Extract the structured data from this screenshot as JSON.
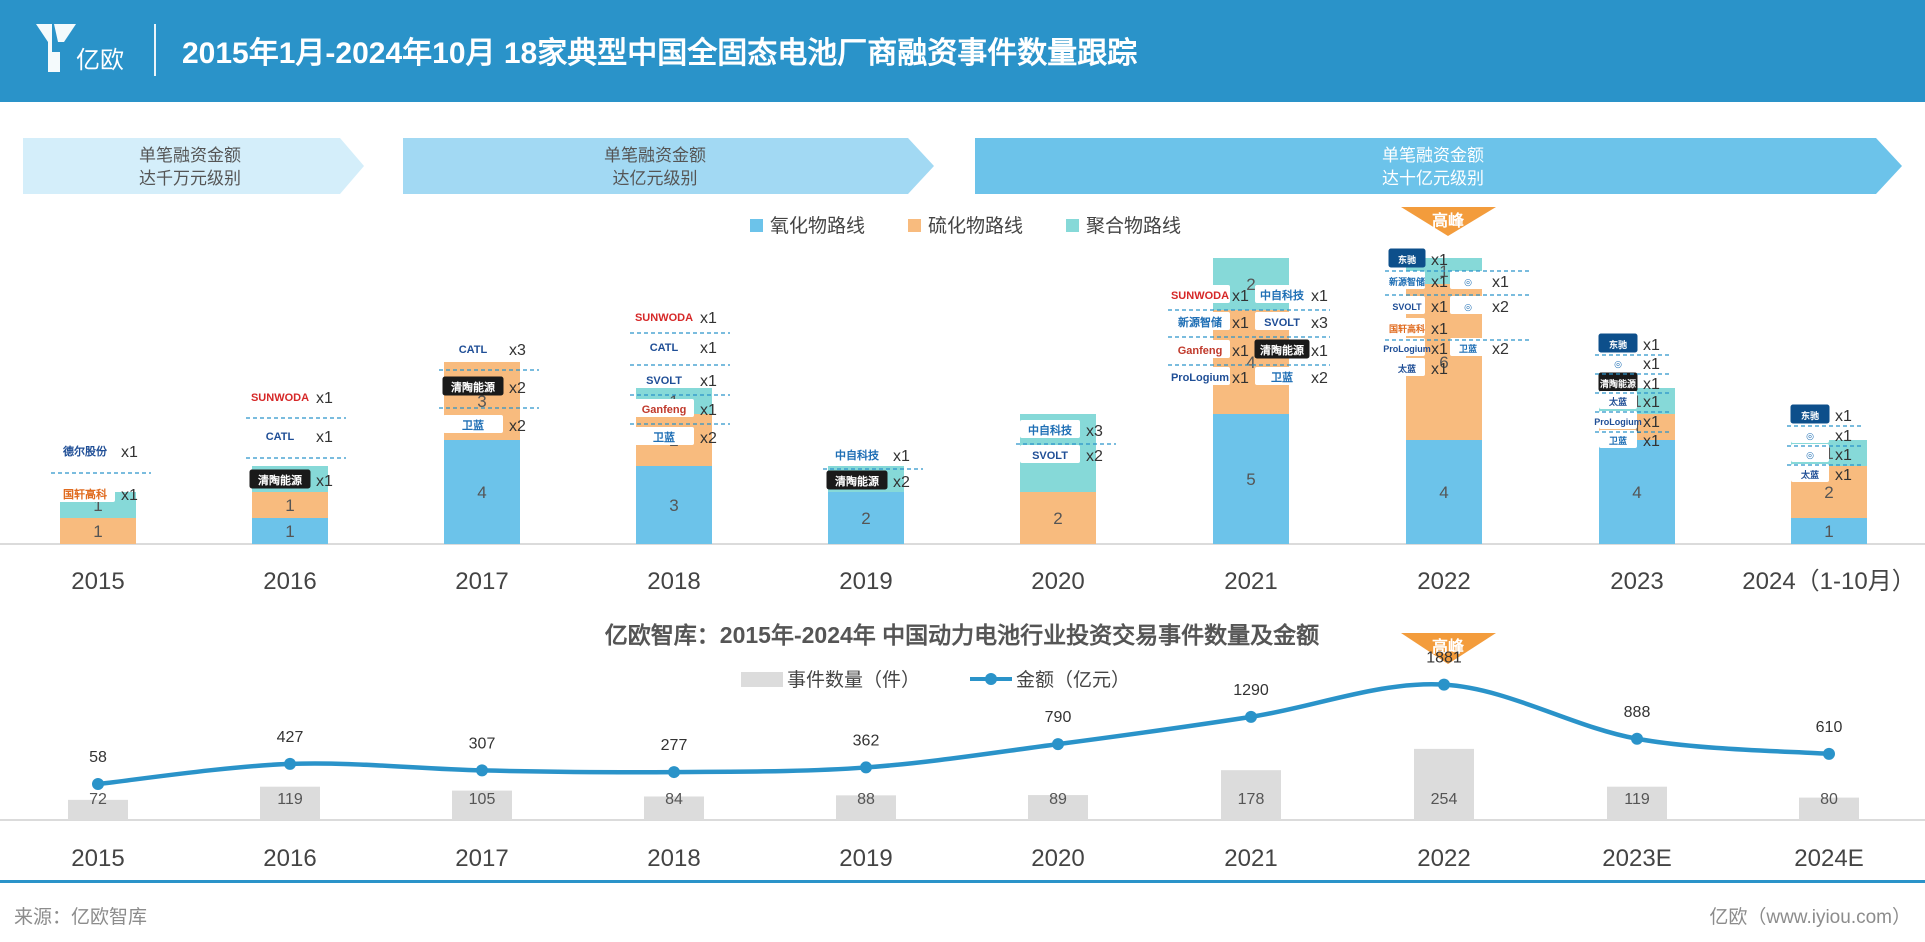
{
  "header": {
    "logo_text": "亿欧",
    "title": "2015年1月-2024年10月 18家典型中国全固态电池厂商融资事件数量跟踪"
  },
  "colors": {
    "header": "#2a93c9",
    "oxide": "#6cc3ea",
    "sulfide": "#f8bb7e",
    "polymer": "#86d9d8",
    "line": "#2a93c9",
    "bar_gray": "#dcdcdc",
    "peak": "#f39c3c"
  },
  "stage_banners": [
    {
      "line1": "单笔融资金额",
      "line2": "达千万元级别"
    },
    {
      "line1": "单笔融资金额",
      "line2": "达亿元级别"
    },
    {
      "line1": "单笔融资金额",
      "line2": "达十亿元级别"
    }
  ],
  "peak_label": "高峰",
  "chart_data": [
    {
      "type": "bar",
      "stacked": true,
      "title": "2015年1月-2024年10月 18家典型中国全固态电池厂商融资事件数量跟踪",
      "categories": [
        "2015",
        "2016",
        "2017",
        "2018",
        "2019",
        "2020",
        "2021",
        "2022",
        "2023",
        "2024（1-10月）"
      ],
      "series": [
        {
          "name": "氧化物路线",
          "color": "#6cc3ea",
          "values": [
            0,
            1,
            4,
            3,
            2,
            0,
            5,
            4,
            4,
            1
          ]
        },
        {
          "name": "硫化物路线",
          "color": "#f8bb7e",
          "values": [
            1,
            1,
            3,
            2,
            0,
            2,
            4,
            6,
            1,
            2
          ]
        },
        {
          "name": "聚合物路线",
          "color": "#86d9d8",
          "values": [
            1,
            1,
            0,
            1,
            1,
            3,
            2,
            1,
            1,
            1
          ]
        }
      ],
      "ylim": [
        0,
        13
      ],
      "annotations": [
        {
          "year": "2015",
          "companies": [
            {
              "name": "德尔股份",
              "count": "x1"
            },
            {
              "name": "国轩高科",
              "count": "x1"
            }
          ]
        },
        {
          "year": "2016",
          "companies": [
            {
              "name": "SUNWODA 欣旺达",
              "count": "x1"
            },
            {
              "name": "CATL 宁德时代",
              "count": "x1"
            },
            {
              "name": "清陶能源",
              "count": "x1"
            }
          ]
        },
        {
          "year": "2017",
          "companies": [
            {
              "name": "CATL 宁德时代",
              "count": "x3"
            },
            {
              "name": "清陶能源",
              "count": "x2"
            },
            {
              "name": "卫蓝新能源",
              "count": "x2"
            }
          ]
        },
        {
          "year": "2018",
          "companies": [
            {
              "name": "SUNWODA 欣旺达",
              "count": "x1"
            },
            {
              "name": "CATL 宁德时代",
              "count": "x1"
            },
            {
              "name": "SVOLT 蜂巢能源",
              "count": "x1"
            },
            {
              "name": "Ganfeng Lithium",
              "count": "x1"
            },
            {
              "name": "卫蓝新能源",
              "count": "x2"
            }
          ]
        },
        {
          "year": "2019",
          "companies": [
            {
              "name": "中自科技",
              "count": "x1"
            },
            {
              "name": "清陶能源",
              "count": "x2"
            }
          ]
        },
        {
          "year": "2020",
          "companies": [
            {
              "name": "中自科技",
              "count": "x3"
            },
            {
              "name": "SVOLT 蜂巢能源",
              "count": "x2"
            }
          ]
        },
        {
          "year": "2021",
          "companies": [
            {
              "name": "SUNWODA 欣旺达",
              "count": "x1"
            },
            {
              "name": "中自科技",
              "count": "x1"
            },
            {
              "name": "新源智储",
              "count": "x1"
            },
            {
              "name": "SVOLT 蜂巢能源",
              "count": "x3"
            },
            {
              "name": "Ganfeng Lithium",
              "count": "x1"
            },
            {
              "name": "清陶能源",
              "count": "x1"
            },
            {
              "name": "ProLogium",
              "count": "x1"
            },
            {
              "name": "卫蓝新能源",
              "count": "x2"
            }
          ]
        },
        {
          "year": "2022",
          "companies": [
            {
              "name": "东驰能源",
              "count": "x1"
            },
            {
              "name": "新源智储",
              "count": "x1"
            },
            {
              "name": "固态企业",
              "count": "x1"
            },
            {
              "name": "SVOLT 蜂巢能源",
              "count": "x1"
            },
            {
              "name": "固态企业",
              "count": "x2"
            },
            {
              "name": "国轩高科",
              "count": "x1"
            },
            {
              "name": "ProLogium",
              "count": "x1"
            },
            {
              "name": "卫蓝新能源",
              "count": "x2"
            },
            {
              "name": "太蓝新能源",
              "count": "x1"
            }
          ]
        },
        {
          "year": "2023",
          "companies": [
            {
              "name": "东驰能源",
              "count": "x1"
            },
            {
              "name": "固态企业",
              "count": "x1"
            },
            {
              "name": "清陶能源",
              "count": "x1"
            },
            {
              "name": "太蓝新能源",
              "count": "x1"
            },
            {
              "name": "ProLogium",
              "count": "x1"
            },
            {
              "name": "卫蓝新能源",
              "count": "x1"
            }
          ]
        },
        {
          "year": "2024（1-10月）",
          "companies": [
            {
              "name": "东驰能源",
              "count": "x1"
            },
            {
              "name": "固态企业",
              "count": "x1"
            },
            {
              "name": "固态企业",
              "count": "x1"
            },
            {
              "name": "太蓝新能源",
              "count": "x1"
            }
          ]
        }
      ]
    },
    {
      "type": "bar+line",
      "title": "亿欧智库：2015年-2024年 中国动力电池行业投资交易事件数量及金额",
      "categories": [
        "2015",
        "2016",
        "2017",
        "2018",
        "2019",
        "2020",
        "2021",
        "2022",
        "2023E",
        "2024E"
      ],
      "series": [
        {
          "name": "事件数量（件）",
          "type": "bar",
          "color": "#dcdcdc",
          "values": [
            72,
            119,
            105,
            84,
            88,
            89,
            178,
            254,
            119,
            80
          ]
        },
        {
          "name": "金额（亿元）",
          "type": "line",
          "color": "#2a93c9",
          "values": [
            58,
            427,
            307,
            277,
            362,
            790,
            1290,
            1881,
            888,
            610
          ]
        }
      ],
      "peak_category": "2022"
    }
  ],
  "footer": {
    "source": "来源：亿欧智库",
    "site": "亿欧（www.iyiou.com）"
  }
}
